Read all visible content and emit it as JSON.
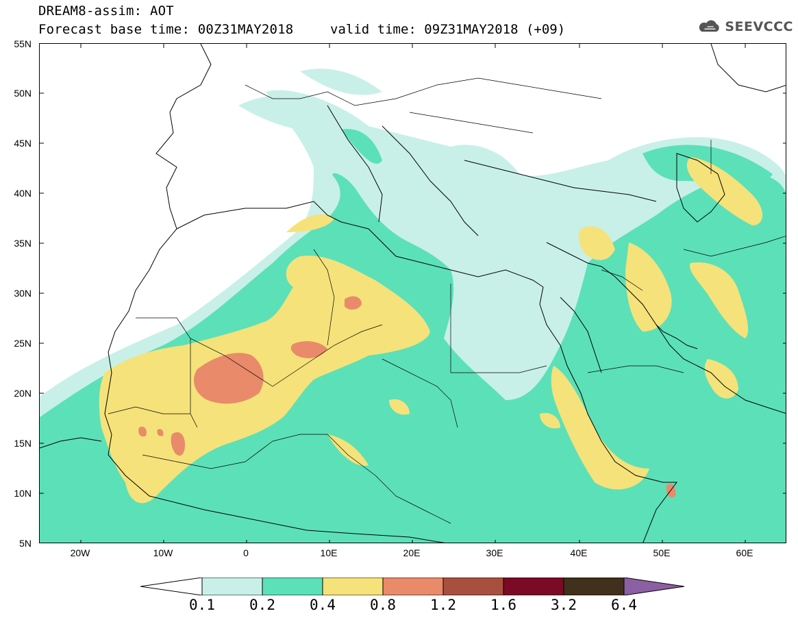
{
  "header": {
    "title_line1": "DREAM8-assim: AOT",
    "title_line2": "Forecast base time: 00Z31MAY2018",
    "valid_time": "valid time: 09Z31MAY2018 (+09)",
    "logo_text": "SEEVCCC",
    "logo_icon": "cloud-icon"
  },
  "map": {
    "lat_labels": [
      "55N",
      "50N",
      "45N",
      "40N",
      "35N",
      "30N",
      "25N",
      "20N",
      "15N",
      "10N",
      "5N"
    ],
    "lon_labels": [
      "20W",
      "10W",
      "0",
      "10E",
      "20E",
      "30E",
      "40E",
      "50E",
      "60E"
    ]
  },
  "legend": {
    "thresholds": [
      "0.1",
      "0.2",
      "0.4",
      "0.8",
      "1.2",
      "1.6",
      "3.2",
      "6.4"
    ],
    "colors": {
      "c0": "#ffffff",
      "c1": "#c8f0e8",
      "c2": "#5ce0b8",
      "c3": "#f5e27a",
      "c4": "#e98a6a",
      "c5": "#a8503f",
      "c6": "#7a0a26",
      "c7": "#40301c",
      "c8": "#8c5fa3"
    }
  }
}
